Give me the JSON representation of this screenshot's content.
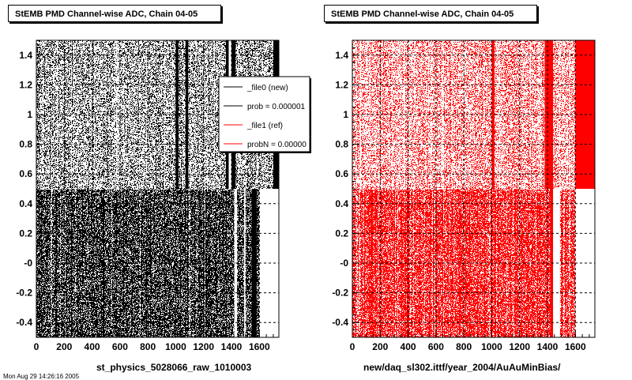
{
  "chart_data": [
    {
      "type": "scatter",
      "title": "StEMB PMD Channel-wise ADC, Chain 04-05",
      "xlabel": "st_physics_5028066_raw_1010003",
      "ylabel": "",
      "xlim": [
        0,
        1740
      ],
      "ylim": [
        -0.5,
        1.5
      ],
      "xticks": [
        0,
        200,
        400,
        600,
        800,
        1000,
        1200,
        1400,
        1600
      ],
      "yticks": [
        -0.4,
        -0.2,
        0,
        0.2,
        0.4,
        0.6,
        0.8,
        1,
        1.2,
        1.4
      ],
      "ytick_labels": [
        "-0.4",
        "-0.2",
        "-0",
        "0.2",
        "0.4",
        "0.6",
        "0.8",
        "1",
        "1.2",
        "1.4"
      ],
      "grid": true,
      "legend_position": "top-right",
      "series": [
        {
          "name": "_file0 (new)",
          "color": "#000000"
        }
      ],
      "legend": [
        {
          "label": "_file0 (new)",
          "color": "#000000"
        },
        {
          "label": "prob = 0.000001",
          "color": "#000000"
        },
        {
          "label": "_file1 (ref)",
          "color": "#ff0000"
        },
        {
          "label": "probN = 0.00000",
          "color": "#ff0000"
        }
      ],
      "marker_color": "#000000",
      "solid_bands": [
        {
          "x": [
            1360,
            1430
          ],
          "y": [
            0.5,
            1.5
          ]
        },
        {
          "x": [
            1700,
            1740
          ],
          "y": [
            0.5,
            1.5
          ]
        },
        {
          "x": [
            1070,
            1090
          ],
          "y": [
            0.5,
            1.5
          ]
        },
        {
          "x": [
            1000,
            1020
          ],
          "y": [
            0.5,
            1.5
          ]
        },
        {
          "x": [
            1545,
            1580
          ],
          "y": [
            -0.5,
            0.5
          ]
        }
      ],
      "empty_bands": [
        {
          "x": [
            1380,
            1400
          ],
          "y": [
            0.5,
            1.5
          ]
        },
        {
          "x": [
            1420,
            1440
          ],
          "y": [
            -0.5,
            0.5
          ]
        },
        {
          "x": [
            1490,
            1500
          ],
          "y": [
            -0.5,
            0.5
          ]
        },
        {
          "x": [
            1600,
            1740
          ],
          "y": [
            -0.5,
            0.5
          ]
        }
      ],
      "density_upper": 0.32,
      "density_lower": 0.7
    },
    {
      "type": "scatter",
      "title": "StEMB PMD Channel-wise ADC, Chain 04-05",
      "xlabel": "new/daq_sl302.ittf/year_2004/AuAuMinBias/",
      "ylabel": "",
      "xlim": [
        0,
        1740
      ],
      "ylim": [
        -0.5,
        1.5
      ],
      "xticks": [
        0,
        200,
        400,
        600,
        800,
        1000,
        1200,
        1400,
        1600
      ],
      "yticks": [
        -0.4,
        -0.2,
        0,
        0.2,
        0.4,
        0.6,
        0.8,
        1,
        1.2,
        1.4
      ],
      "ytick_labels": [
        "-0.4",
        "-0.2",
        "-0",
        "0.2",
        "0.4",
        "0.6",
        "0.8",
        "1",
        "1.2",
        "1.4"
      ],
      "grid": true,
      "series": [
        {
          "name": "_file1 (ref)",
          "color": "#ff0000"
        }
      ],
      "marker_color": "#ff0000",
      "solid_bands": [
        {
          "x": [
            1380,
            1440
          ],
          "y": [
            0.5,
            1.5
          ]
        },
        {
          "x": [
            1600,
            1740
          ],
          "y": [
            0.5,
            1.5
          ]
        },
        {
          "x": [
            1000,
            1020
          ],
          "y": [
            0.5,
            1.5
          ]
        },
        {
          "x": [
            1420,
            1440
          ],
          "y": [
            -0.5,
            0.5
          ]
        }
      ],
      "empty_bands": [
        {
          "x": [
            1440,
            1490
          ],
          "y": [
            -0.5,
            0.5
          ]
        },
        {
          "x": [
            1600,
            1740
          ],
          "y": [
            -0.5,
            0.5
          ]
        }
      ],
      "density_upper": 0.3,
      "density_lower": 0.72
    }
  ],
  "footer": "Mon Aug 29 14:26:16 2005"
}
